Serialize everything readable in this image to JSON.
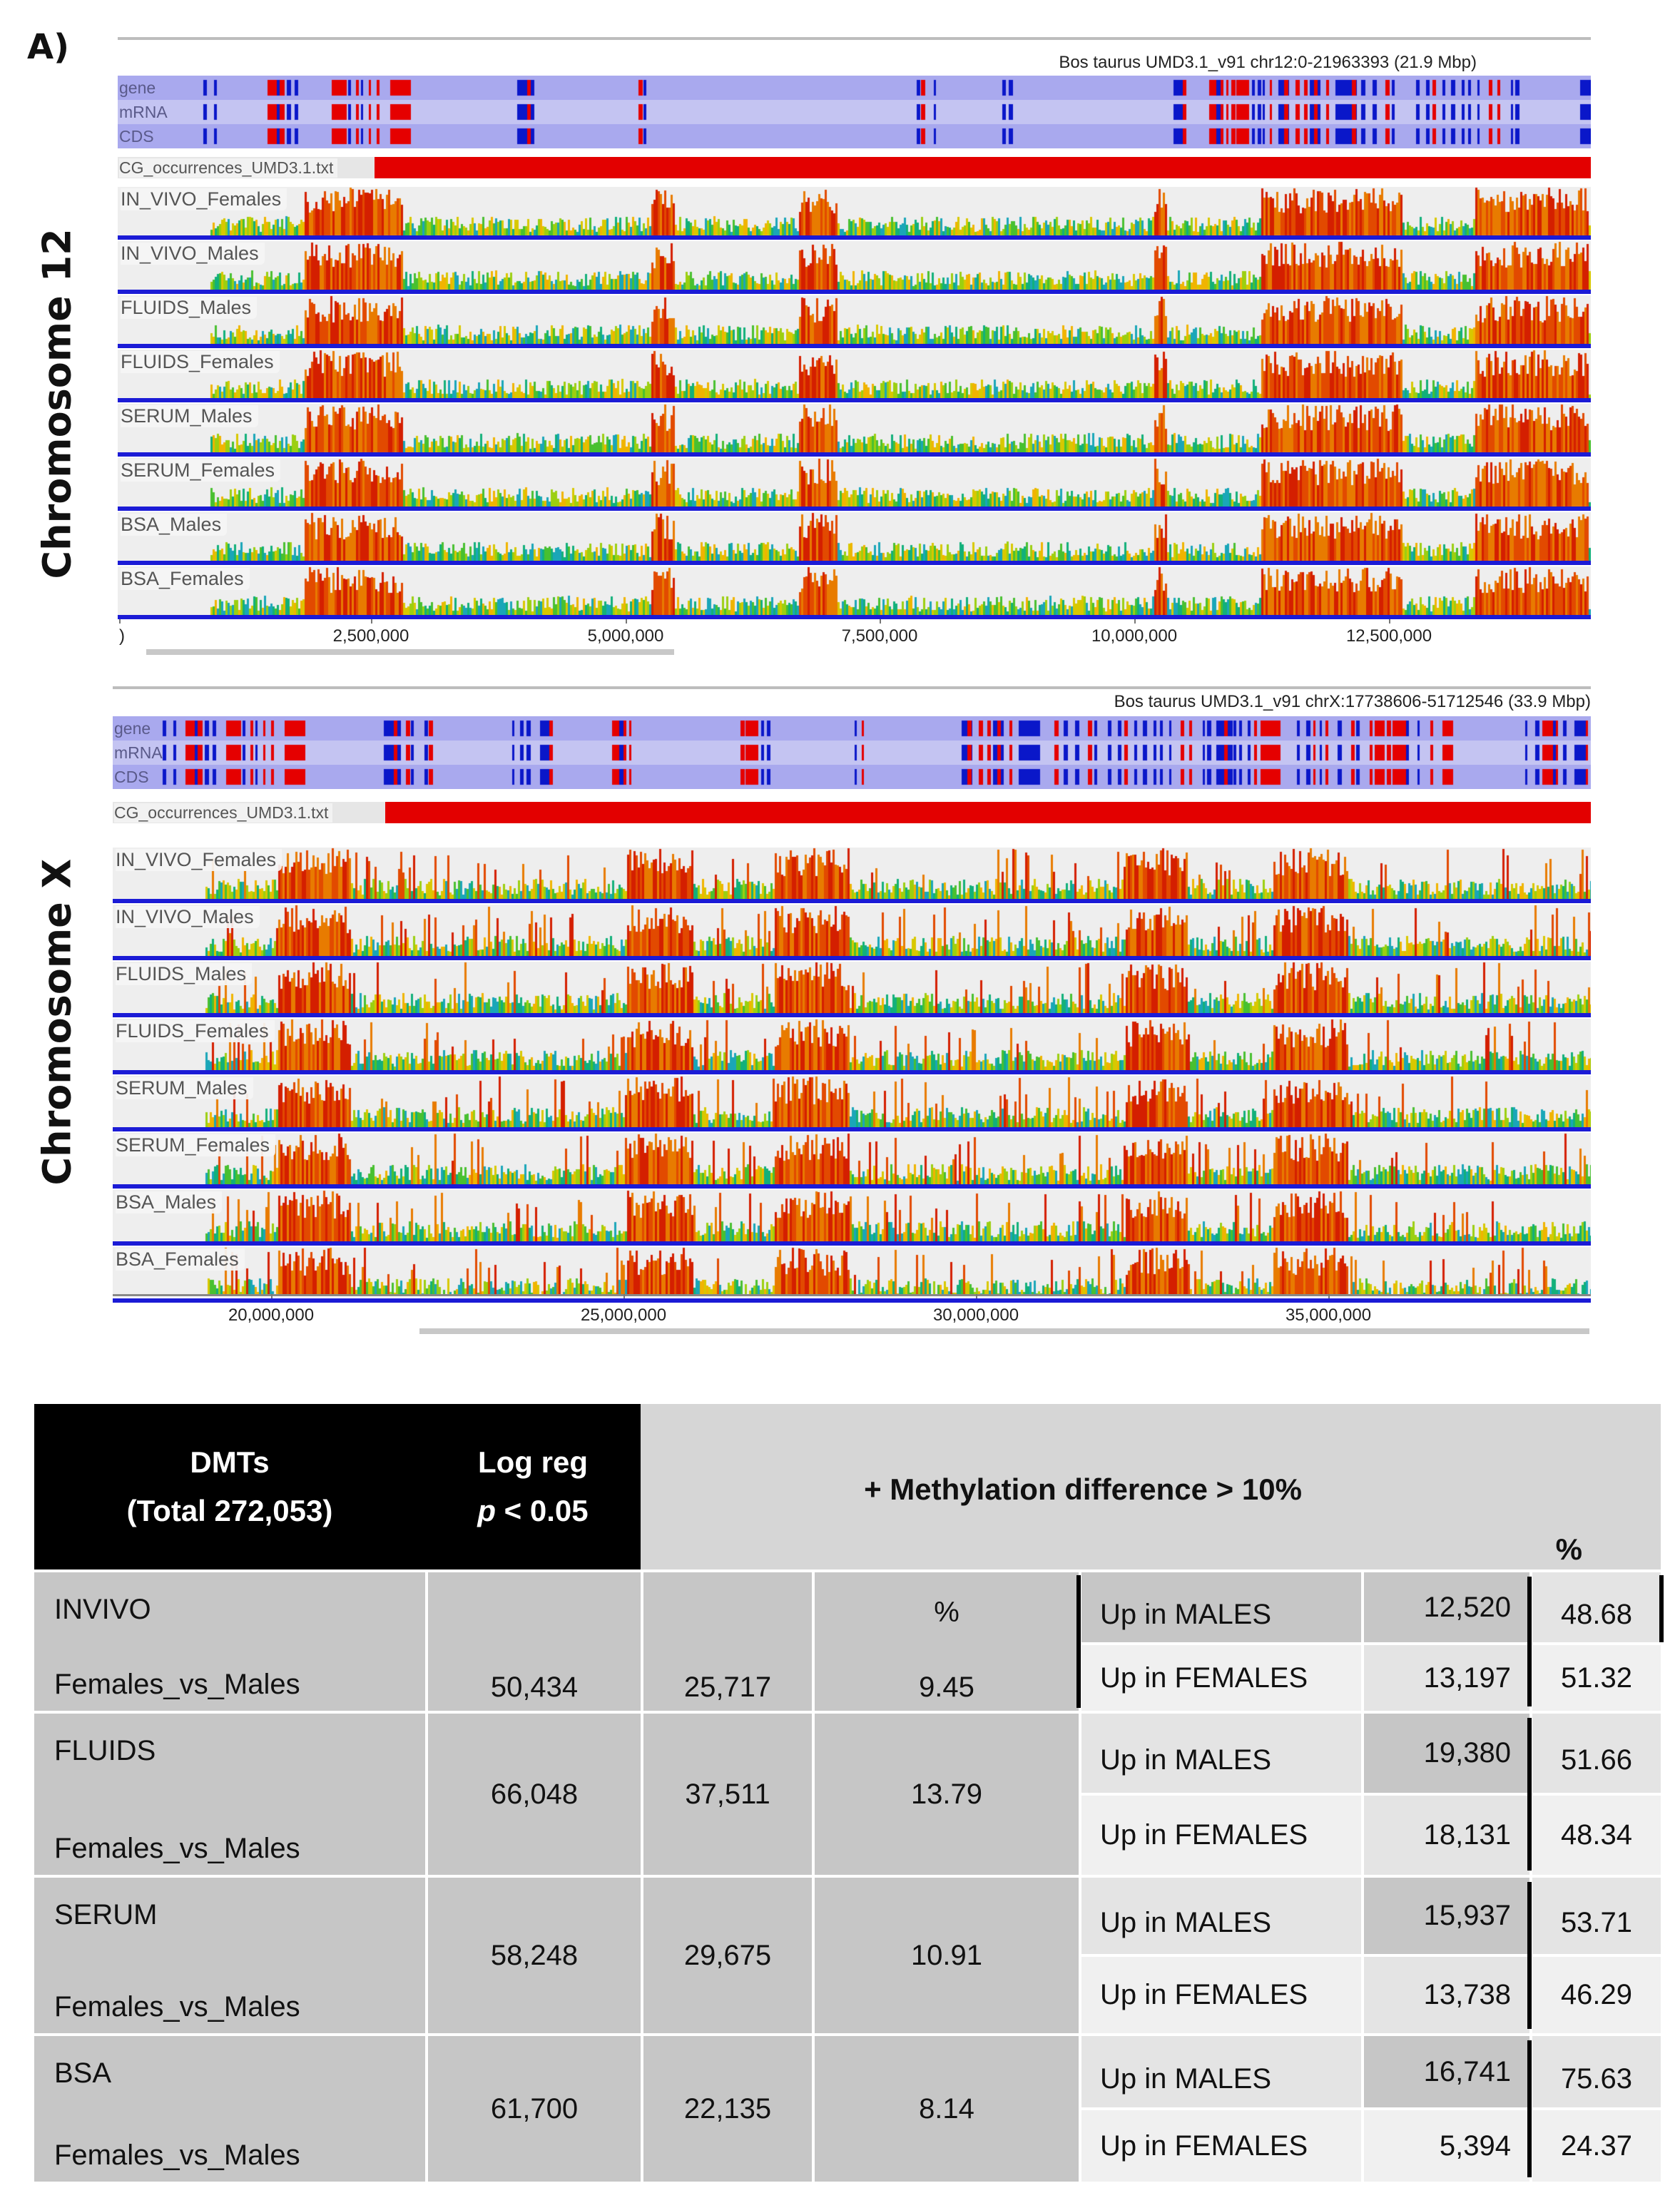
{
  "figure": {
    "panel_label": "A)",
    "colors": {
      "gene_track": "#a9a9ee",
      "mrna_track": "#c4c4f2",
      "cds_track": "#a9a9ee",
      "feature_blue": "#0a17c9",
      "feature_red": "#e50000",
      "cg_bar": "#e30000",
      "track_bg": "#eeeeee",
      "baseline_blue": "#1b1bd6"
    },
    "browsers": [
      {
        "id": "chr12",
        "chromosome_label": "Chromosome   12",
        "header": "Bos taurus UMD3.1_v91 chr12:0-21963393 (21.9 Mbp)",
        "annotation_labels": [
          "gene",
          "mRNA",
          "CDS"
        ],
        "cg_label": "CG_occurrences_UMD3.1.txt",
        "tracks": [
          "IN_VIVO_Females",
          "IN_VIVO_Males",
          "FLUIDS_Males",
          "FLUIDS_Females",
          "SERUM_Males",
          "SERUM_Females",
          "BSA_Males",
          "BSA_Females"
        ],
        "axis_ticks": [
          "2,500,000",
          "5,000,000",
          "7,500,000",
          "10,000,000",
          "12,500,000"
        ],
        "axis_first_label": ")"
      },
      {
        "id": "chrX",
        "chromosome_label": "Chromosome   X",
        "header": "Bos taurus UMD3.1_v91 chrX:17738606-51712546 (33.9 Mbp)",
        "annotation_labels": [
          "gene",
          "mRNA",
          "CDS"
        ],
        "cg_label": "CG_occurrences_UMD3.1.txt",
        "tracks": [
          "IN_VIVO_Females",
          "IN_VIVO_Males",
          "FLUIDS_Males",
          "FLUIDS_Females",
          "SERUM_Males",
          "SERUM_Females",
          "BSA_Males",
          "BSA_Females"
        ],
        "axis_ticks": [
          "20,000,000",
          "25,000,000",
          "30,000,000",
          "35,000,000"
        ],
        "axis_first_label": ""
      }
    ]
  },
  "table": {
    "header": {
      "dmts_line1": "DMTs",
      "dmts_line2": "(Total 272,053)",
      "logreg_line1": "Log reg",
      "logreg_p": "p",
      "logreg_rest": " < 0.05",
      "methylation": "+ Methylation difference > 10%",
      "percent": "%"
    },
    "invivo_pct_header": "%",
    "rows": [
      {
        "group": "INVIVO",
        "comparison": "Females_vs_Males",
        "logreg": "50,434",
        "methyl": "25,717",
        "pct": "9.45",
        "up_males_label": "Up in MALES",
        "up_males_count": "12,520",
        "up_males_pct": "48.68",
        "up_females_label": "Up in FEMALES",
        "up_females_count": "13,197",
        "up_females_pct": "51.32"
      },
      {
        "group": "FLUIDS",
        "comparison": "Females_vs_Males",
        "logreg": "66,048",
        "methyl": "37,511",
        "pct": "13.79",
        "up_males_label": "Up in MALES",
        "up_males_count": "19,380",
        "up_males_pct": "51.66",
        "up_females_label": "Up in FEMALES",
        "up_females_count": "18,131",
        "up_females_pct": "48.34"
      },
      {
        "group": "SERUM",
        "comparison": "Females_vs_Males",
        "logreg": "58,248",
        "methyl": "29,675",
        "pct": "10.91",
        "up_males_label": "Up in MALES",
        "up_males_count": "15,937",
        "up_males_pct": "53.71",
        "up_females_label": "Up in FEMALES",
        "up_females_count": "13,738",
        "up_females_pct": "46.29"
      },
      {
        "group": "BSA",
        "comparison": "Females_vs_Males",
        "logreg": "61,700",
        "methyl": "22,135",
        "pct": "8.14",
        "up_males_label": "Up in MALES",
        "up_males_count": "16,741",
        "up_males_pct": "75.63",
        "up_females_label": "Up in FEMALES",
        "up_females_count": "5,394",
        "up_females_pct": "24.37"
      }
    ]
  }
}
